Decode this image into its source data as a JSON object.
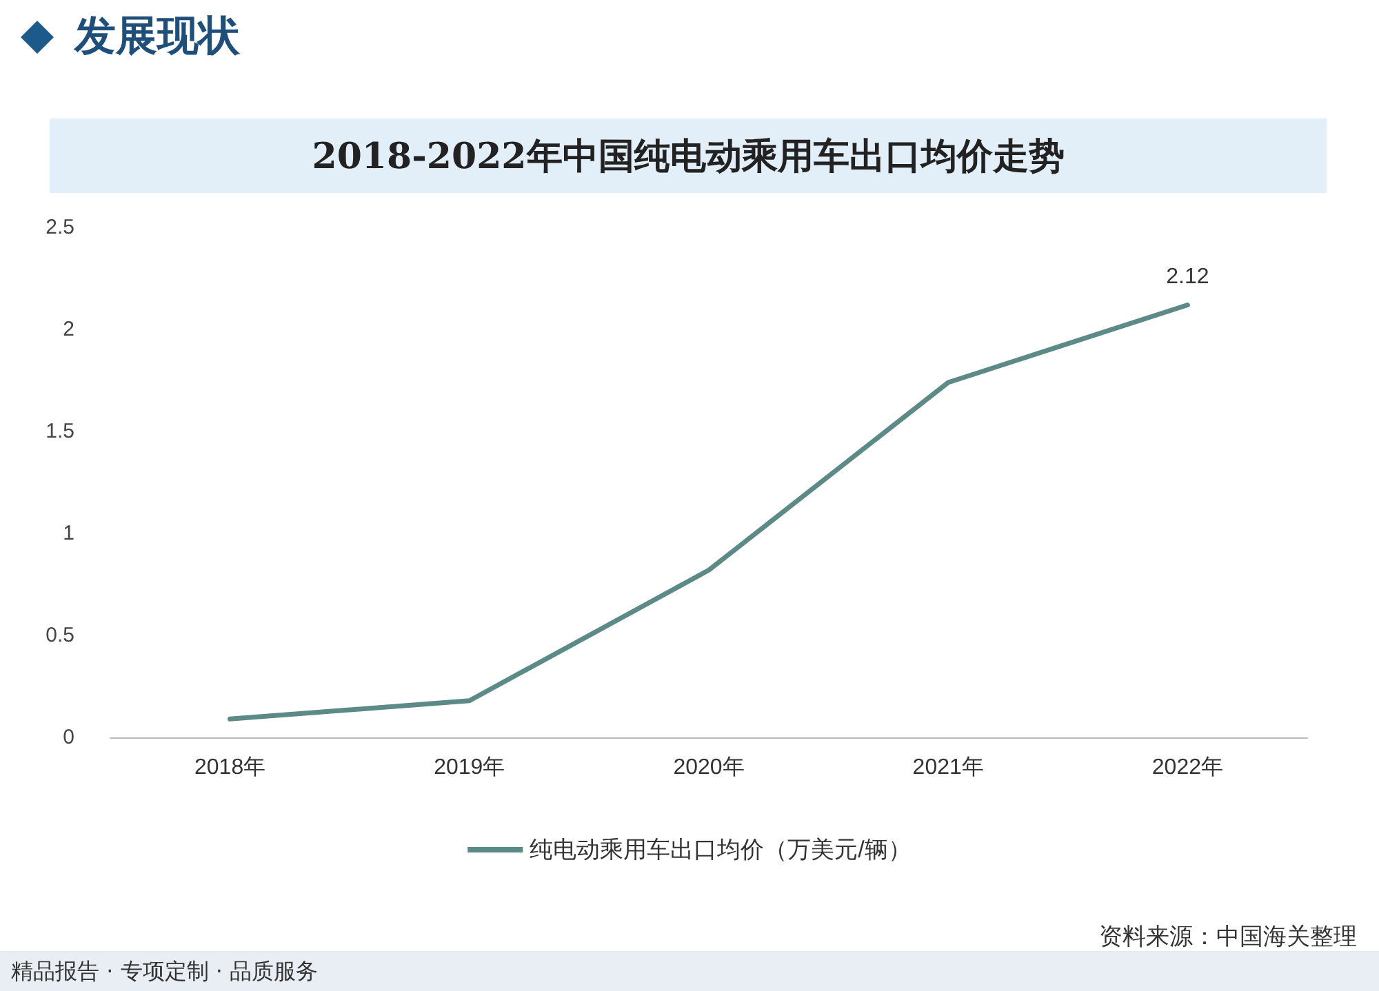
{
  "chart_data": {
    "type": "line",
    "title": "2018-2022年中国纯电动乘用车出口均价走势",
    "categories": [
      "2018年",
      "2019年",
      "2020年",
      "2021年",
      "2022年"
    ],
    "series": [
      {
        "name": "纯电动乘用车出口均价（万美元/辆）",
        "color": "#5b8a87",
        "values": [
          0.09,
          0.18,
          0.82,
          1.74,
          2.12
        ],
        "value_labels": [
          null,
          null,
          null,
          null,
          "2.12"
        ]
      }
    ],
    "ylim": [
      0,
      2.5
    ],
    "yticks": [
      0,
      0.5,
      1,
      1.5,
      2,
      2.5
    ],
    "grid": false,
    "legend": "bottom",
    "marker": "none",
    "line_style": "solid",
    "annotations": [
      "发展现状",
      "资料来源：中国海关整理",
      "精品报告 · 专项定制 · 品质服务"
    ]
  }
}
